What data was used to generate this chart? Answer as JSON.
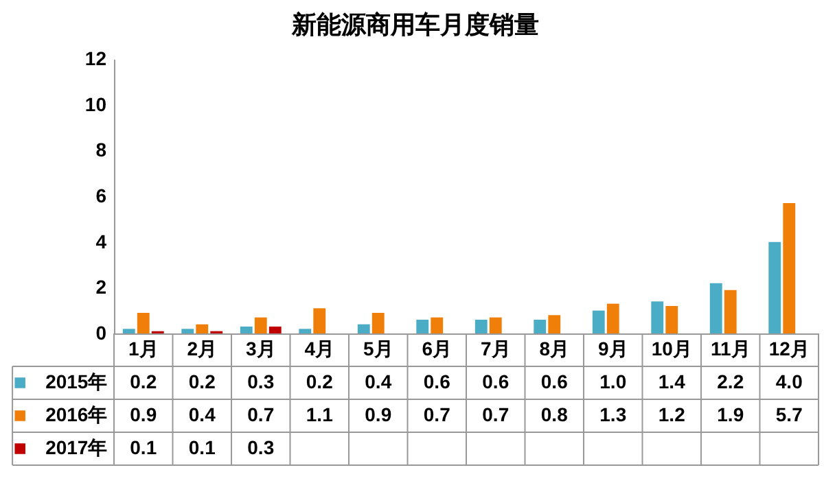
{
  "chart_data": {
    "type": "bar",
    "title": "新能源商用车月度销量",
    "categories": [
      "1月",
      "2月",
      "3月",
      "4月",
      "5月",
      "6月",
      "7月",
      "8月",
      "9月",
      "10月",
      "11月",
      "12月"
    ],
    "series": [
      {
        "name": "2015年",
        "color": "#4bacc6",
        "values": [
          0.2,
          0.2,
          0.3,
          0.2,
          0.4,
          0.6,
          0.6,
          0.6,
          1.0,
          1.4,
          2.2,
          4.0
        ],
        "value_labels": [
          "0.2",
          "0.2",
          "0.3",
          "0.2",
          "0.4",
          "0.6",
          "0.6",
          "0.6",
          "1.0",
          "1.4",
          "2.2",
          "4.0"
        ]
      },
      {
        "name": "2016年",
        "color": "#f07f09",
        "values": [
          0.9,
          0.4,
          0.7,
          1.1,
          0.9,
          0.7,
          0.7,
          0.8,
          1.3,
          1.2,
          1.9,
          5.7
        ],
        "value_labels": [
          "0.9",
          "0.4",
          "0.7",
          "1.1",
          "0.9",
          "0.7",
          "0.7",
          "0.8",
          "1.3",
          "1.2",
          "1.9",
          "5.7"
        ]
      },
      {
        "name": "2017年",
        "color": "#c00000",
        "values": [
          0.1,
          0.1,
          0.3,
          null,
          null,
          null,
          null,
          null,
          null,
          null,
          null,
          null
        ],
        "value_labels": [
          "0.1",
          "0.1",
          "0.3",
          null,
          null,
          null,
          null,
          null,
          null,
          null,
          null,
          null
        ]
      }
    ],
    "ylim": [
      0,
      12
    ],
    "yticks": [
      0,
      2,
      4,
      6,
      8,
      10,
      12
    ],
    "grid": false,
    "legend": "bottom"
  }
}
